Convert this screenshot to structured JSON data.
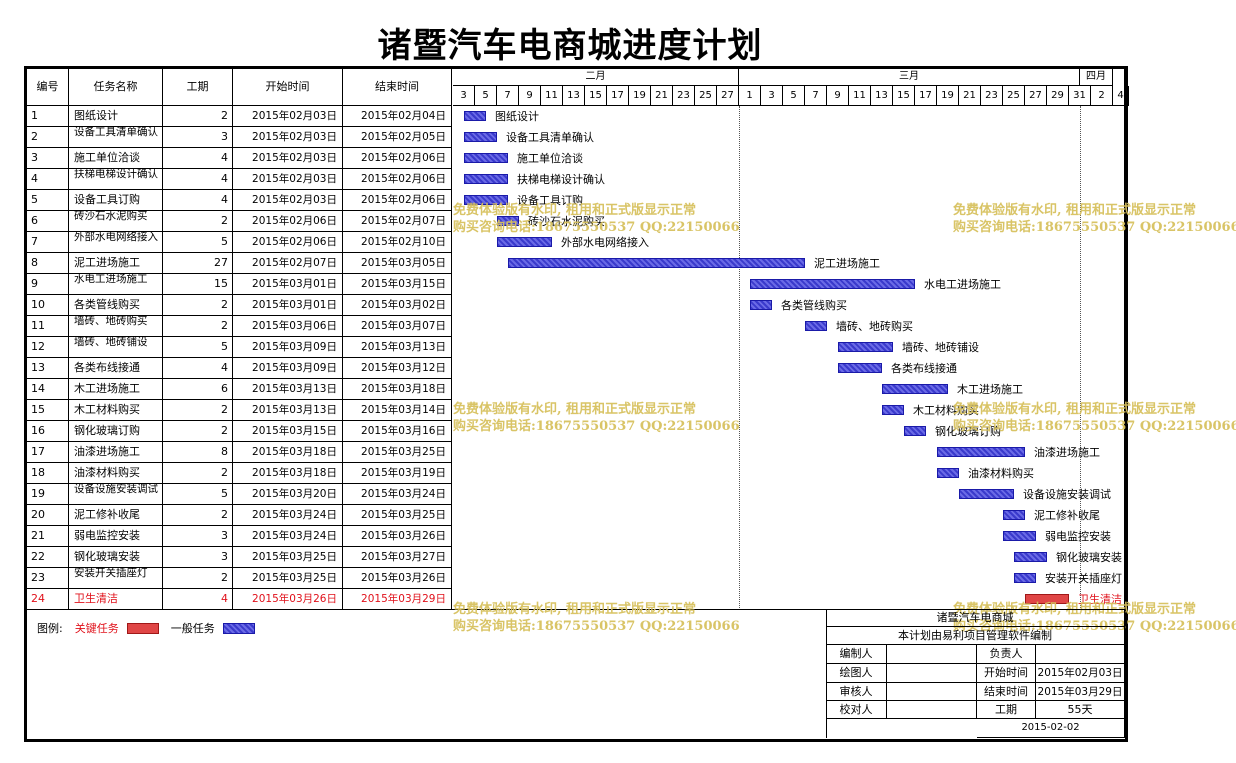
{
  "title": "诸暨汽车电商城进度计划",
  "table": {
    "headers": [
      "编号",
      "任务名称",
      "工期",
      "开始时间",
      "结束时间"
    ],
    "months": [
      "二月",
      "三月",
      "四月"
    ],
    "days": [
      "3",
      "5",
      "7",
      "9",
      "11",
      "13",
      "15",
      "17",
      "19",
      "21",
      "23",
      "25",
      "27",
      "1",
      "3",
      "5",
      "7",
      "9",
      "11",
      "13",
      "15",
      "17",
      "19",
      "21",
      "23",
      "25",
      "27",
      "29",
      "31",
      "2",
      "4"
    ]
  },
  "chart_data": {
    "type": "gantt",
    "title": "诸暨汽车电商城进度计划",
    "x_axis": {
      "range": [
        "2015-02-02",
        "2015-04-04"
      ],
      "months": [
        "二月",
        "三月",
        "四月"
      ]
    },
    "tasks": [
      {
        "id": "1",
        "name": "图纸设计",
        "duration": 2,
        "start": "2015年02月03日",
        "end": "2015年02月04日",
        "critical": false
      },
      {
        "id": "2",
        "name": "设备工具清单确认",
        "duration": 3,
        "start": "2015年02月03日",
        "end": "2015年02月05日",
        "critical": false
      },
      {
        "id": "3",
        "name": "施工单位洽谈",
        "duration": 4,
        "start": "2015年02月03日",
        "end": "2015年02月06日",
        "critical": false
      },
      {
        "id": "4",
        "name": "扶梯电梯设计确认",
        "duration": 4,
        "start": "2015年02月03日",
        "end": "2015年02月06日",
        "critical": false
      },
      {
        "id": "5",
        "name": "设备工具订购",
        "duration": 4,
        "start": "2015年02月03日",
        "end": "2015年02月06日",
        "critical": false
      },
      {
        "id": "6",
        "name": "砖沙石水泥购买",
        "duration": 2,
        "start": "2015年02月06日",
        "end": "2015年02月07日",
        "critical": false
      },
      {
        "id": "7",
        "name": "外部水电网络接入",
        "duration": 5,
        "start": "2015年02月06日",
        "end": "2015年02月10日",
        "critical": false
      },
      {
        "id": "8",
        "name": "泥工进场施工",
        "duration": 27,
        "start": "2015年02月07日",
        "end": "2015年03月05日",
        "critical": false
      },
      {
        "id": "9",
        "name": "水电工进场施工",
        "duration": 15,
        "start": "2015年03月01日",
        "end": "2015年03月15日",
        "critical": false
      },
      {
        "id": "10",
        "name": "各类管线购买",
        "duration": 2,
        "start": "2015年03月01日",
        "end": "2015年03月02日",
        "critical": false
      },
      {
        "id": "11",
        "name": "墙砖、地砖购买",
        "duration": 2,
        "start": "2015年03月06日",
        "end": "2015年03月07日",
        "critical": false
      },
      {
        "id": "12",
        "name": "墙砖、地砖铺设",
        "duration": 5,
        "start": "2015年03月09日",
        "end": "2015年03月13日",
        "critical": false
      },
      {
        "id": "13",
        "name": "各类布线接通",
        "duration": 4,
        "start": "2015年03月09日",
        "end": "2015年03月12日",
        "critical": false
      },
      {
        "id": "14",
        "name": "木工进场施工",
        "duration": 6,
        "start": "2015年03月13日",
        "end": "2015年03月18日",
        "critical": false
      },
      {
        "id": "15",
        "name": "木工材料购买",
        "duration": 2,
        "start": "2015年03月13日",
        "end": "2015年03月14日",
        "critical": false
      },
      {
        "id": "16",
        "name": "钢化玻璃订购",
        "duration": 2,
        "start": "2015年03月15日",
        "end": "2015年03月16日",
        "critical": false
      },
      {
        "id": "17",
        "name": "油漆进场施工",
        "duration": 8,
        "start": "2015年03月18日",
        "end": "2015年03月25日",
        "critical": false
      },
      {
        "id": "18",
        "name": "油漆材料购买",
        "duration": 2,
        "start": "2015年03月18日",
        "end": "2015年03月19日",
        "critical": false
      },
      {
        "id": "19",
        "name": "设备设施安装调试",
        "duration": 5,
        "start": "2015年03月20日",
        "end": "2015年03月24日",
        "critical": false
      },
      {
        "id": "20",
        "name": "泥工修补收尾",
        "duration": 2,
        "start": "2015年03月24日",
        "end": "2015年03月25日",
        "critical": false
      },
      {
        "id": "21",
        "name": "弱电监控安装",
        "duration": 3,
        "start": "2015年03月24日",
        "end": "2015年03月26日",
        "critical": false
      },
      {
        "id": "22",
        "name": "钢化玻璃安装",
        "duration": 3,
        "start": "2015年03月25日",
        "end": "2015年03月27日",
        "critical": false
      },
      {
        "id": "23",
        "name": "安装开关插座灯",
        "duration": 2,
        "start": "2015年03月25日",
        "end": "2015年03月26日",
        "critical": false
      },
      {
        "id": "24",
        "name": "卫生清洁",
        "duration": 4,
        "start": "2015年03月26日",
        "end": "2015年03月29日",
        "critical": true
      }
    ]
  },
  "legend": {
    "label": "图例:",
    "critical": "关键任务",
    "normal": "一般任务"
  },
  "info": {
    "company": "诸暨汽车电商城",
    "subtitle": "本计划由易利项目管理软件编制",
    "editor_label": "编制人",
    "drawer_label": "绘图人",
    "reviewer_label": "审核人",
    "checker_label": "校对人",
    "owner_label": "负责人",
    "start_label": "开始时间",
    "start_value": "2015年02月03日",
    "end_label": "结束时间",
    "end_value": "2015年03月29日",
    "duration_label": "工期",
    "duration_value": "55天",
    "date": "2015-02-02"
  },
  "watermarks": {
    "line1": "免费体验版有水印, 租用和正式版显示正常",
    "line2": "购买咨询电话:18675550537 QQ:22150066"
  },
  "colors": {
    "normal_bar": "#3a3acc",
    "critical_bar": "#e04646",
    "critical_text": "#e0101a",
    "watermark": "#d7c15e"
  }
}
